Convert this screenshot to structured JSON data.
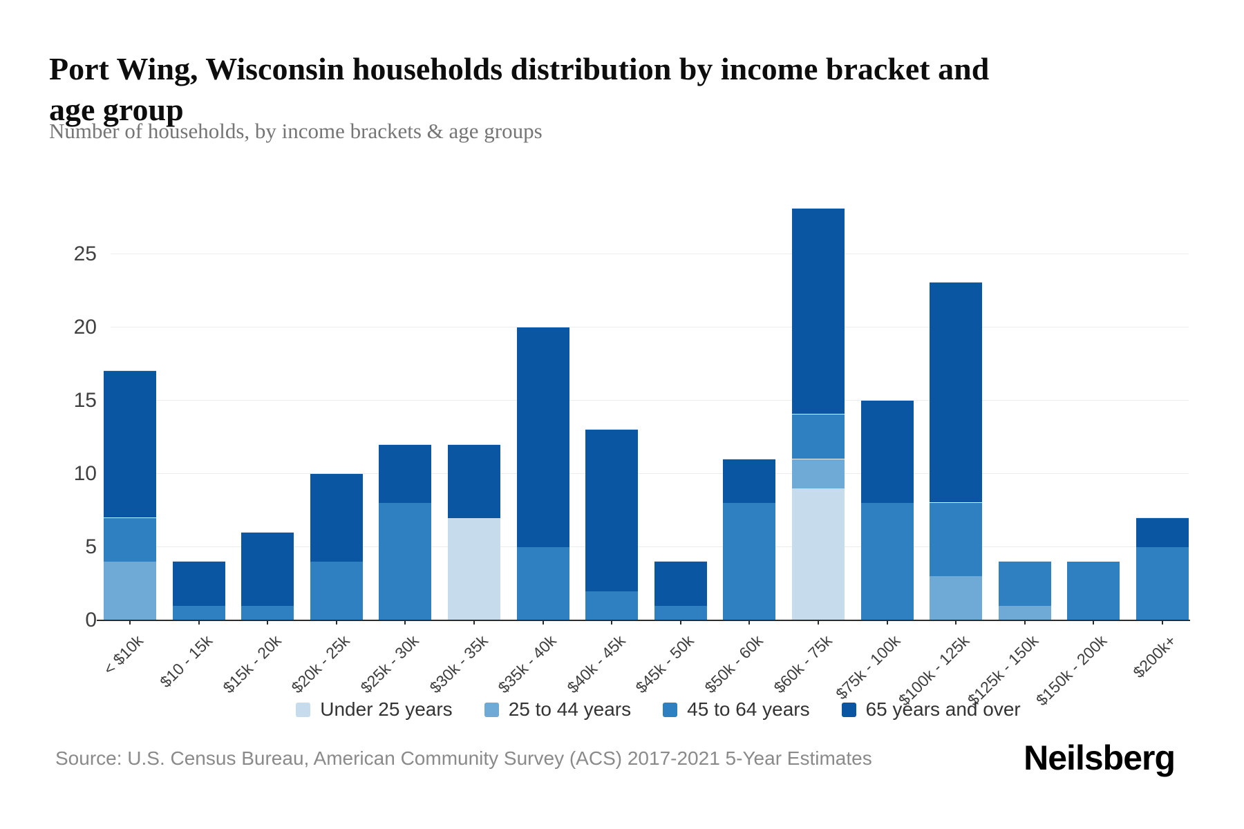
{
  "header": {
    "title": "Port Wing, Wisconsin households distribution by income bracket and age group",
    "subtitle": "Number of households, by income brackets & age groups"
  },
  "chart_data": {
    "type": "bar",
    "stacked": true,
    "title": "Port Wing, Wisconsin households distribution by income bracket and age group",
    "subtitle": "Number of households, by income brackets & age groups",
    "xlabel": "",
    "ylabel": "",
    "ylim": [
      0,
      28
    ],
    "y_ticks": [
      0,
      5,
      10,
      15,
      20,
      25
    ],
    "grid": "horizontal",
    "legend_position": "bottom",
    "categories": [
      "< $10k",
      "$10 - 15k",
      "$15k - 20k",
      "$20k - 25k",
      "$25k - 30k",
      "$30k - 35k",
      "$35k - 40k",
      "$40k - 45k",
      "$45k - 50k",
      "$50k - 60k",
      "$60k - 75k",
      "$75k - 100k",
      "$100k - 125k",
      "$125k - 150k",
      "$150k - 200k",
      "$200k+"
    ],
    "series": [
      {
        "name": "Under 25 years",
        "color": "#c6dbec",
        "values": [
          0,
          0,
          0,
          0,
          0,
          7,
          0,
          0,
          0,
          0,
          9,
          0,
          0,
          0,
          0,
          0
        ]
      },
      {
        "name": "25 to 44 years",
        "color": "#6fa9d5",
        "values": [
          4,
          0,
          0,
          0,
          0,
          0,
          0,
          0,
          0,
          0,
          2,
          0,
          3,
          1,
          0,
          0
        ]
      },
      {
        "name": "45 to 64 years",
        "color": "#2f80c0",
        "values": [
          3,
          1,
          1,
          4,
          8,
          0,
          5,
          2,
          1,
          8,
          3,
          8,
          5,
          3,
          4,
          5
        ]
      },
      {
        "name": "65 years and over",
        "color": "#0b56a3",
        "values": [
          10,
          3,
          5,
          6,
          4,
          5,
          15,
          11,
          3,
          3,
          14,
          7,
          15,
          0,
          0,
          2
        ]
      }
    ],
    "totals": [
      17,
      4,
      6,
      10,
      12,
      12,
      20,
      13,
      4,
      11,
      28,
      15,
      23,
      4,
      4,
      7
    ]
  },
  "footer": {
    "source": "Source: U.S. Census Bureau, American Community Survey (ACS) 2017-2021 5-Year Estimates",
    "brand": "Neilsberg"
  }
}
